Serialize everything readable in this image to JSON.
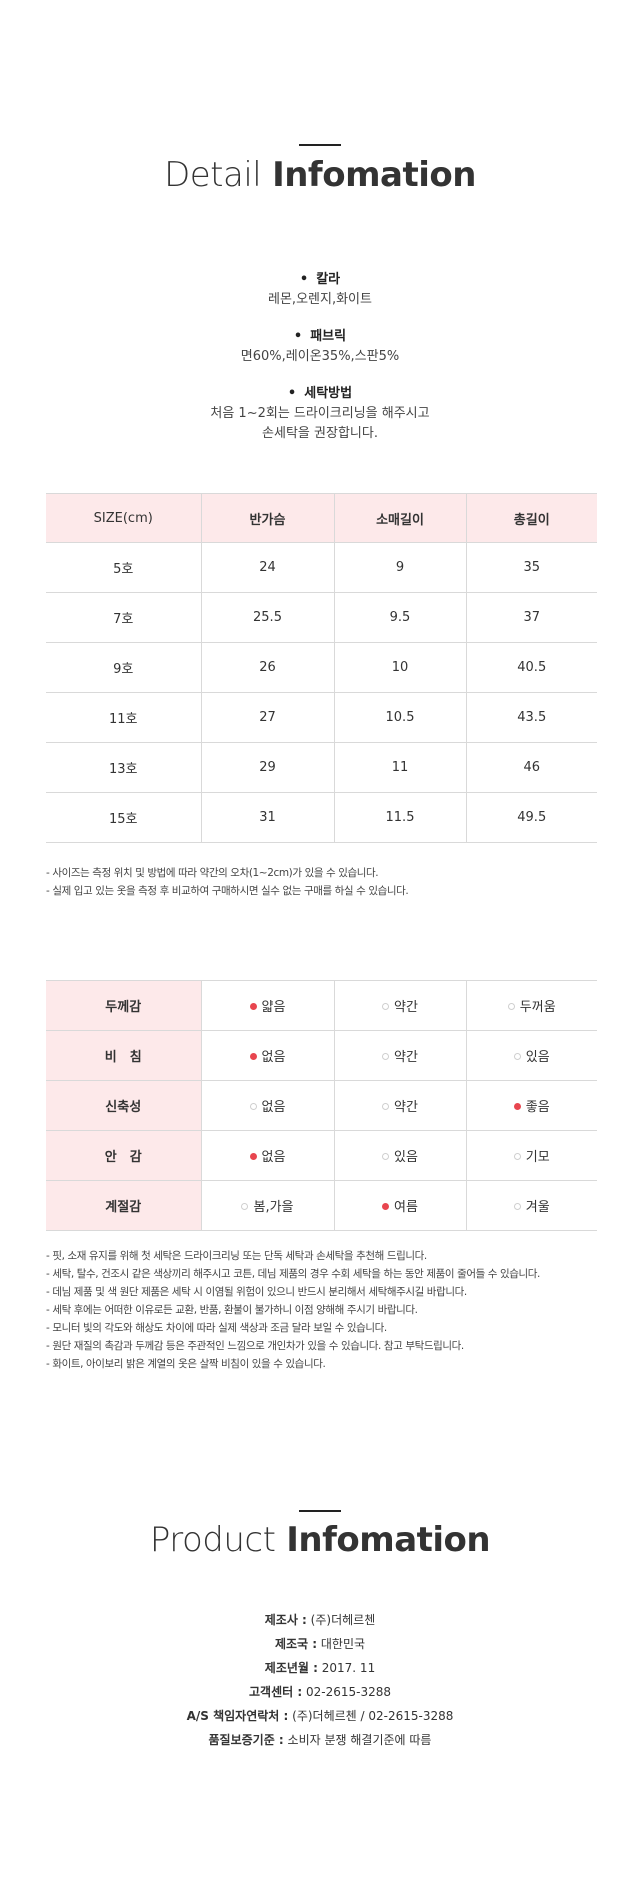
{
  "detail": {
    "title_light": "Detail",
    "title_bold": "Infomation",
    "specs": [
      {
        "head": "칼라",
        "values": [
          "레몬,오렌지,화이트"
        ]
      },
      {
        "head": "패브릭",
        "values": [
          "면60%,레이온35%,스판5%"
        ]
      },
      {
        "head": "세탁방법",
        "values": [
          "처음 1~2회는 드라이크리닝을 해주시고",
          "손세탁을 권장합니다."
        ]
      }
    ]
  },
  "size_table": {
    "headers": [
      "SIZE(cm)",
      "반가슴",
      "소매길이",
      "총길이"
    ],
    "rows": [
      [
        "5호",
        "24",
        "9",
        "35"
      ],
      [
        "7호",
        "25.5",
        "9.5",
        "37"
      ],
      [
        "9호",
        "26",
        "10",
        "40.5"
      ],
      [
        "11호",
        "27",
        "10.5",
        "43.5"
      ],
      [
        "13호",
        "29",
        "11",
        "46"
      ],
      [
        "15호",
        "31",
        "11.5",
        "49.5"
      ]
    ]
  },
  "size_notes": [
    "- 사이즈는 측정 위치 및 방법에 따라 약간의 오차(1~2cm)가 있을 수 있습니다.",
    "- 실제 입고 있는 옷을 측정 후 비교하여 구매하시면 실수 없는 구매를 하실 수 있습니다."
  ],
  "rating_table": {
    "rows": [
      {
        "label": "두께감",
        "options": [
          "얇음",
          "약간",
          "두꺼움"
        ],
        "selected": 0
      },
      {
        "label": "비　침",
        "options": [
          "없음",
          "약간",
          "있음"
        ],
        "selected": 0
      },
      {
        "label": "신축성",
        "options": [
          "없음",
          "약간",
          "좋음"
        ],
        "selected": 2
      },
      {
        "label": "안　감",
        "options": [
          "없음",
          "있음",
          "기모"
        ],
        "selected": 0
      },
      {
        "label": "계절감",
        "options": [
          "봄,가을",
          "여름",
          "겨울"
        ],
        "selected": 1
      }
    ],
    "accent_color": "#e8464f",
    "header_bg": "#fde9ea"
  },
  "care_notes": [
    "- 핏, 소재 유지를 위해 첫 세탁은 드라이크리닝 또는 단독 세탁과 손세탁을 추천해 드립니다.",
    "- 세탁, 탈수, 건조시 같은 색상끼리 해주시고 코튼, 데님 제품의 경우 수회 세탁을 하는 동안 제품이 줄어들 수 있습니다.",
    "- 데님 제품 및 색 원단 제품은 세탁 시 이염될 위험이 있으니 반드시 분리해서 세탁해주시길 바랍니다.",
    "- 세탁 후에는 어떠한 이유로든 교환, 반품, 환불이 불가하니 이점 양해해 주시기 바랍니다.",
    "- 모니터 빛의 각도와 해상도 차이에 따라 실제 색상과 조금 달라 보일 수 있습니다.",
    "- 원단 재질의 촉감과 두께감 등은 주관적인 느낌으로 개인차가 있을 수 있습니다. 참고 부탁드립니다.",
    "- 화이트, 아이보리 밝은 계열의 옷은 살짝 비침이 있을 수 있습니다."
  ],
  "product": {
    "title_light": "Product",
    "title_bold": "Infomation",
    "items": [
      {
        "key": "제조사 :",
        "value": "(주)더헤르첸"
      },
      {
        "key": "제조국 :",
        "value": "대한민국"
      },
      {
        "key": "제조년월 :",
        "value": "2017. 11"
      },
      {
        "key": "고객센터 :",
        "value": "02-2615-3288"
      },
      {
        "key": "A/S 책임자연락처 :",
        "value": "(주)더헤르첸 / 02-2615-3288"
      },
      {
        "key": "품질보증기준 :",
        "value": "소비자 분쟁 해결기준에 따름"
      }
    ]
  }
}
